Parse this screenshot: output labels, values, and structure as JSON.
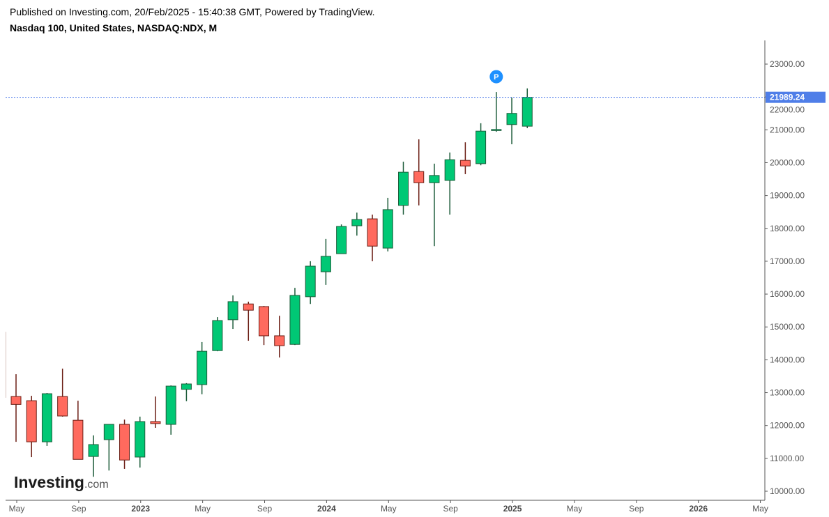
{
  "header": {
    "published": "Published on Investing.com, 20/Feb/2025 - 15:40:38 GMT, Powered by TradingView.",
    "title": "Nasdaq 100, United States, NASDAQ:NDX, M"
  },
  "logo": {
    "main": "Investing",
    "suffix": ".com"
  },
  "marker": {
    "label": "P",
    "month": "Dec 2024"
  },
  "colors": {
    "up": "#00c875",
    "up_border": "#1d5c3a",
    "down": "#ff6a5e",
    "down_border": "#6b1d14",
    "price_line": "#3f6fe8",
    "price_label_bg": "#4f7ee8",
    "marker": "#1e90ff"
  },
  "chart_data": {
    "type": "candlestick",
    "title": "Nasdaq 100, United States, NASDAQ:NDX, M",
    "ylim": [
      9800,
      23700
    ],
    "y_ticks": [
      "10000.00",
      "11000.00",
      "12000.00",
      "13000.00",
      "14000.00",
      "15000.00",
      "16000.00",
      "17000.00",
      "18000.00",
      "19000.00",
      "20000.00",
      "21000.00",
      "22000.00",
      "23000.00"
    ],
    "x_ticks": [
      {
        "label": "May",
        "month_index": 4,
        "year": false
      },
      {
        "label": "Sep",
        "month_index": 8,
        "year": false
      },
      {
        "label": "2023",
        "month_index": 12,
        "year": true
      },
      {
        "label": "May",
        "month_index": 16,
        "year": false
      },
      {
        "label": "Sep",
        "month_index": 20,
        "year": false
      },
      {
        "label": "2024",
        "month_index": 24,
        "year": true
      },
      {
        "label": "May",
        "month_index": 28,
        "year": false
      },
      {
        "label": "Sep",
        "month_index": 32,
        "year": false
      },
      {
        "label": "2025",
        "month_index": 36,
        "year": true
      },
      {
        "label": "May",
        "month_index": 40,
        "year": false
      },
      {
        "label": "Sep",
        "month_index": 44,
        "year": false
      },
      {
        "label": "2026",
        "month_index": 48,
        "year": true
      },
      {
        "label": "May",
        "month_index": 52,
        "year": false
      }
    ],
    "last_price": 21989.24,
    "last_price_label": "21989.24",
    "candles": [
      {
        "month": "Apr 2022",
        "m": 3,
        "o": 14840,
        "h": 14898,
        "l": 12840,
        "c": 12855
      },
      {
        "month": "May 2022",
        "m": 4,
        "o": 12883,
        "h": 13561,
        "l": 11504,
        "c": 12643
      },
      {
        "month": "Jun 2022",
        "m": 5,
        "o": 12755,
        "h": 12904,
        "l": 11038,
        "c": 11504
      },
      {
        "month": "Jul 2022",
        "m": 6,
        "o": 11504,
        "h": 12990,
        "l": 11380,
        "c": 12968
      },
      {
        "month": "Aug 2022",
        "m": 7,
        "o": 12883,
        "h": 13730,
        "l": 12270,
        "c": 12290
      },
      {
        "month": "Sep 2022",
        "m": 8,
        "o": 12160,
        "h": 12755,
        "l": 10970,
        "c": 10970
      },
      {
        "month": "Oct 2022",
        "m": 9,
        "o": 11058,
        "h": 11700,
        "l": 10440,
        "c": 11420
      },
      {
        "month": "Nov 2022",
        "m": 10,
        "o": 11570,
        "h": 12035,
        "l": 10630,
        "c": 12035
      },
      {
        "month": "Dec 2022",
        "m": 11,
        "o": 12035,
        "h": 12180,
        "l": 10680,
        "c": 10950
      },
      {
        "month": "Jan 2023",
        "m": 12,
        "o": 11040,
        "h": 12270,
        "l": 10720,
        "c": 12120
      },
      {
        "month": "Feb 2023",
        "m": 13,
        "o": 12120,
        "h": 12883,
        "l": 11930,
        "c": 12060
      },
      {
        "month": "Mar 2023",
        "m": 14,
        "o": 12035,
        "h": 13220,
        "l": 11720,
        "c": 13200
      },
      {
        "month": "Apr 2023",
        "m": 15,
        "o": 13100,
        "h": 13290,
        "l": 12740,
        "c": 13265
      },
      {
        "month": "May 2023",
        "m": 16,
        "o": 13245,
        "h": 14540,
        "l": 12950,
        "c": 14260
      },
      {
        "month": "Jun 2023",
        "m": 17,
        "o": 14280,
        "h": 15300,
        "l": 14260,
        "c": 15195
      },
      {
        "month": "Jul 2023",
        "m": 18,
        "o": 15220,
        "h": 15960,
        "l": 14940,
        "c": 15770
      },
      {
        "month": "Aug 2023",
        "m": 19,
        "o": 15700,
        "h": 15770,
        "l": 14580,
        "c": 15510
      },
      {
        "month": "Sep 2023",
        "m": 20,
        "o": 15620,
        "h": 15640,
        "l": 14450,
        "c": 14730
      },
      {
        "month": "Oct 2023",
        "m": 21,
        "o": 14730,
        "h": 15340,
        "l": 14070,
        "c": 14430
      },
      {
        "month": "Nov 2023",
        "m": 22,
        "o": 14470,
        "h": 16190,
        "l": 14450,
        "c": 15960
      },
      {
        "month": "Dec 2023",
        "m": 23,
        "o": 15920,
        "h": 17000,
        "l": 15700,
        "c": 16850
      },
      {
        "month": "Jan 2024",
        "m": 24,
        "o": 16680,
        "h": 17680,
        "l": 16280,
        "c": 17150
      },
      {
        "month": "Feb 2024",
        "m": 25,
        "o": 17230,
        "h": 18120,
        "l": 17230,
        "c": 18060
      },
      {
        "month": "Mar 2024",
        "m": 26,
        "o": 18080,
        "h": 18480,
        "l": 17780,
        "c": 18270
      },
      {
        "month": "Apr 2024",
        "m": 27,
        "o": 18290,
        "h": 18420,
        "l": 17000,
        "c": 17460
      },
      {
        "month": "May 2024",
        "m": 28,
        "o": 17400,
        "h": 18930,
        "l": 17300,
        "c": 18570
      },
      {
        "month": "Jun 2024",
        "m": 29,
        "o": 18700,
        "h": 20030,
        "l": 18420,
        "c": 19710
      },
      {
        "month": "Jul 2024",
        "m": 30,
        "o": 19730,
        "h": 20710,
        "l": 18700,
        "c": 19390
      },
      {
        "month": "Aug 2024",
        "m": 31,
        "o": 19390,
        "h": 19970,
        "l": 17460,
        "c": 19610
      },
      {
        "month": "Sep 2024",
        "m": 32,
        "o": 19460,
        "h": 20310,
        "l": 18420,
        "c": 20090
      },
      {
        "month": "Oct 2024",
        "m": 33,
        "o": 20070,
        "h": 20620,
        "l": 19650,
        "c": 19900
      },
      {
        "month": "Nov 2024",
        "m": 34,
        "o": 19970,
        "h": 21200,
        "l": 19920,
        "c": 20960
      },
      {
        "month": "Dec 2024",
        "m": 35,
        "o": 20980,
        "h": 22150,
        "l": 20940,
        "c": 21010
      },
      {
        "month": "Jan 2025",
        "m": 36,
        "o": 21160,
        "h": 21980,
        "l": 20560,
        "c": 21500
      },
      {
        "month": "Feb 2025",
        "m": 37,
        "o": 21110,
        "h": 22260,
        "l": 21050,
        "c": 21989.24
      }
    ]
  }
}
